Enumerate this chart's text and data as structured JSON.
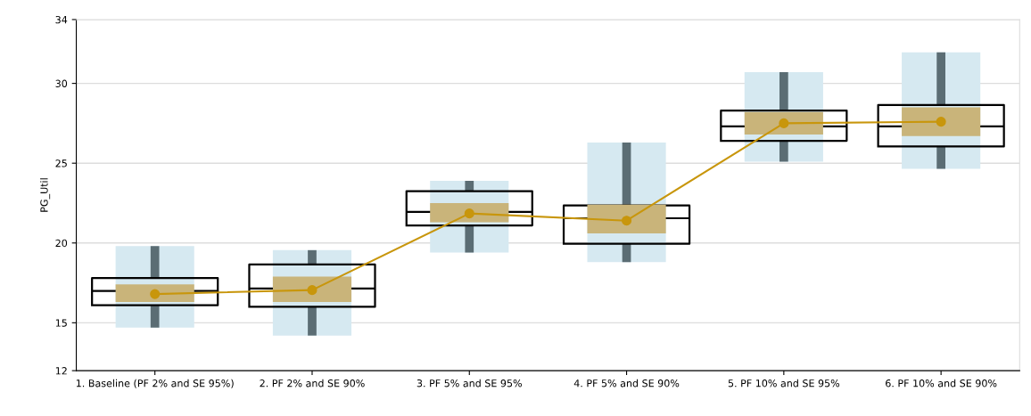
{
  "chart_data": {
    "type": "box",
    "ylabel": "PG_Util",
    "categories": [
      "1. Baseline (PF 2% and SE 95%)",
      "2. PF 2% and SE 90%",
      "3. PF 5% and SE 95%",
      "4. PF 5% and SE 90%",
      "5. PF 10% and SE 95%",
      "6. PF 10% and SE 90%"
    ],
    "ylim": [
      12,
      34
    ],
    "yticks": [
      12,
      15,
      20,
      25,
      30,
      34
    ],
    "grid": "y",
    "series": [
      {
        "type": "bar",
        "color": "#d6e9f1",
        "base": [
          14.7,
          14.2,
          19.4,
          18.8,
          25.1,
          24.65
        ],
        "values": [
          5.1,
          5.35,
          4.5,
          7.5,
          5.6,
          7.3
        ]
      },
      {
        "color": "#000000",
        "boxes": [
          {
            "low": 14.7,
            "q1": 16.1,
            "median": 17.0,
            "q3": 17.8,
            "high": 19.8
          },
          {
            "low": 14.2,
            "q1": 16.0,
            "median": 17.15,
            "q3": 18.65,
            "high": 19.55
          },
          {
            "low": 19.4,
            "q1": 21.1,
            "median": 21.95,
            "q3": 23.25,
            "high": 23.9
          },
          {
            "low": 18.8,
            "q1": 19.95,
            "median": 21.55,
            "q3": 22.35,
            "high": 26.3
          },
          {
            "low": 25.1,
            "q1": 26.4,
            "median": 27.3,
            "q3": 28.3,
            "high": 30.7
          },
          {
            "low": 24.65,
            "q1": 26.05,
            "median": 27.3,
            "q3": 28.65,
            "high": 31.95
          }
        ]
      },
      {
        "type": "bar",
        "color": "#c9b47a",
        "base": [
          16.3,
          16.3,
          21.3,
          20.6,
          26.8,
          26.7
        ],
        "values": [
          1.1,
          1.6,
          1.2,
          1.8,
          1.4,
          1.8
        ]
      },
      {
        "type": "line",
        "color": "#c8960c",
        "marker": "circle",
        "values": [
          16.8,
          17.05,
          21.85,
          21.4,
          27.5,
          27.6
        ]
      }
    ]
  }
}
